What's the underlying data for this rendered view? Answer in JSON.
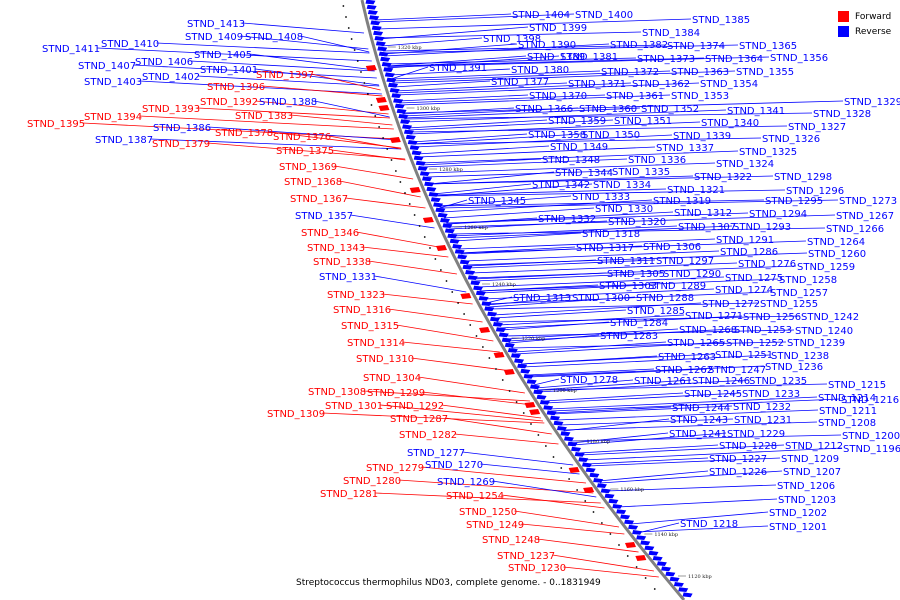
{
  "legend": {
    "forward_label": "Forward",
    "reverse_label": "Reverse",
    "forward_color": "#ff0000",
    "reverse_color": "#0000ff"
  },
  "caption": "Streptococcus thermophilus ND03, complete genome. - 0..1831949",
  "backbone_color": "#808080",
  "ticks": [
    "1320 kbp",
    "1300 kbp",
    "1280 kbp",
    "1260 kbp",
    "1240 kbp",
    "1220 kbp",
    "1200 kbp",
    "1180 kbp",
    "1160 kbp",
    "1140 kbp",
    "1120 kbp"
  ],
  "left_labels": [
    {
      "text": "STND_1413",
      "strand": "reverse"
    },
    {
      "text": "STND_1409",
      "strand": "reverse"
    },
    {
      "text": "STND_1408",
      "strand": "reverse"
    },
    {
      "text": "STND_1410",
      "strand": "reverse"
    },
    {
      "text": "STND_1411",
      "strand": "reverse"
    },
    {
      "text": "STND_1405",
      "strand": "reverse"
    },
    {
      "text": "STND_1406",
      "strand": "reverse"
    },
    {
      "text": "STND_1407",
      "strand": "reverse"
    },
    {
      "text": "STND_1401",
      "strand": "reverse"
    },
    {
      "text": "STND_1402",
      "strand": "reverse"
    },
    {
      "text": "STND_1403",
      "strand": "reverse"
    },
    {
      "text": "STND_1397",
      "strand": "forward"
    },
    {
      "text": "STND_1396",
      "strand": "forward"
    },
    {
      "text": "STND_1392",
      "strand": "forward"
    },
    {
      "text": "STND_1388",
      "strand": "reverse"
    },
    {
      "text": "STND_1393",
      "strand": "forward"
    },
    {
      "text": "STND_1394",
      "strand": "forward"
    },
    {
      "text": "STND_1395",
      "strand": "forward"
    },
    {
      "text": "STND_1383",
      "strand": "forward"
    },
    {
      "text": "STND_1386",
      "strand": "reverse"
    },
    {
      "text": "STND_1378",
      "strand": "forward"
    },
    {
      "text": "STND_1387",
      "strand": "reverse"
    },
    {
      "text": "STND_1376",
      "strand": "forward"
    },
    {
      "text": "STND_1379",
      "strand": "forward"
    },
    {
      "text": "STND_1375",
      "strand": "forward"
    },
    {
      "text": "STND_1369",
      "strand": "forward"
    },
    {
      "text": "STND_1368",
      "strand": "forward"
    },
    {
      "text": "STND_1367",
      "strand": "forward"
    },
    {
      "text": "STND_1357",
      "strand": "reverse"
    },
    {
      "text": "STND_1346",
      "strand": "forward"
    },
    {
      "text": "STND_1343",
      "strand": "forward"
    },
    {
      "text": "STND_1338",
      "strand": "forward"
    },
    {
      "text": "STND_1331",
      "strand": "reverse"
    },
    {
      "text": "STND_1323",
      "strand": "forward"
    },
    {
      "text": "STND_1316",
      "strand": "forward"
    },
    {
      "text": "STND_1315",
      "strand": "forward"
    },
    {
      "text": "STND_1314",
      "strand": "forward"
    },
    {
      "text": "STND_1310",
      "strand": "forward"
    },
    {
      "text": "STND_1304",
      "strand": "forward"
    },
    {
      "text": "STND_1308",
      "strand": "forward"
    },
    {
      "text": "STND_1299",
      "strand": "forward"
    },
    {
      "text": "STND_1301",
      "strand": "forward"
    },
    {
      "text": "STND_1309",
      "strand": "forward"
    },
    {
      "text": "STND_1292",
      "strand": "forward"
    },
    {
      "text": "STND_1287",
      "strand": "forward"
    },
    {
      "text": "STND_1282",
      "strand": "forward"
    },
    {
      "text": "STND_1277",
      "strand": "reverse"
    },
    {
      "text": "STND_1279",
      "strand": "forward"
    },
    {
      "text": "STND_1270",
      "strand": "reverse"
    },
    {
      "text": "STND_1280",
      "strand": "forward"
    },
    {
      "text": "STND_1269",
      "strand": "reverse"
    },
    {
      "text": "STND_1281",
      "strand": "forward"
    },
    {
      "text": "STND_1254",
      "strand": "forward"
    },
    {
      "text": "STND_1250",
      "strand": "forward"
    },
    {
      "text": "STND_1249",
      "strand": "forward"
    },
    {
      "text": "STND_1248",
      "strand": "forward"
    },
    {
      "text": "STND_1237",
      "strand": "forward"
    },
    {
      "text": "STND_1230",
      "strand": "forward"
    }
  ],
  "right_labels": [
    {
      "text": "STND_1404",
      "strand": "reverse"
    },
    {
      "text": "STND_1400",
      "strand": "reverse"
    },
    {
      "text": "STND_1385",
      "strand": "reverse"
    },
    {
      "text": "STND_1399",
      "strand": "reverse"
    },
    {
      "text": "STND_1384",
      "strand": "reverse"
    },
    {
      "text": "STND_1398",
      "strand": "reverse"
    },
    {
      "text": "STND_1390",
      "strand": "reverse"
    },
    {
      "text": "STND_1382",
      "strand": "reverse"
    },
    {
      "text": "STND_1374",
      "strand": "reverse"
    },
    {
      "text": "STND_1365",
      "strand": "reverse"
    },
    {
      "text": "STND_1389",
      "strand": "reverse"
    },
    {
      "text": "STND_1381",
      "strand": "reverse"
    },
    {
      "text": "STND_1373",
      "strand": "reverse"
    },
    {
      "text": "STND_1364",
      "strand": "reverse"
    },
    {
      "text": "STND_1356",
      "strand": "reverse"
    },
    {
      "text": "STND_1391",
      "strand": "reverse"
    },
    {
      "text": "STND_1380",
      "strand": "reverse"
    },
    {
      "text": "STND_1372",
      "strand": "reverse"
    },
    {
      "text": "STND_1363",
      "strand": "reverse"
    },
    {
      "text": "STND_1355",
      "strand": "reverse"
    },
    {
      "text": "STND_1377",
      "strand": "reverse"
    },
    {
      "text": "STND_1371",
      "strand": "reverse"
    },
    {
      "text": "STND_1362",
      "strand": "reverse"
    },
    {
      "text": "STND_1354",
      "strand": "reverse"
    },
    {
      "text": "STND_1370",
      "strand": "reverse"
    },
    {
      "text": "STND_1361",
      "strand": "reverse"
    },
    {
      "text": "STND_1353",
      "strand": "reverse"
    },
    {
      "text": "STND_1329",
      "strand": "reverse"
    },
    {
      "text": "STND_1366",
      "strand": "reverse"
    },
    {
      "text": "STND_1360",
      "strand": "reverse"
    },
    {
      "text": "STND_1352",
      "strand": "reverse"
    },
    {
      "text": "STND_1341",
      "strand": "reverse"
    },
    {
      "text": "STND_1328",
      "strand": "reverse"
    },
    {
      "text": "STND_1359",
      "strand": "reverse"
    },
    {
      "text": "STND_1351",
      "strand": "reverse"
    },
    {
      "text": "STND_1340",
      "strand": "reverse"
    },
    {
      "text": "STND_1327",
      "strand": "reverse"
    },
    {
      "text": "STND_1358",
      "strand": "reverse"
    },
    {
      "text": "STND_1350",
      "strand": "reverse"
    },
    {
      "text": "STND_1339",
      "strand": "reverse"
    },
    {
      "text": "STND_1326",
      "strand": "reverse"
    },
    {
      "text": "STND_1349",
      "strand": "reverse"
    },
    {
      "text": "STND_1337",
      "strand": "reverse"
    },
    {
      "text": "STND_1325",
      "strand": "reverse"
    },
    {
      "text": "STND_1348",
      "strand": "reverse"
    },
    {
      "text": "STND_1336",
      "strand": "reverse"
    },
    {
      "text": "STND_1324",
      "strand": "reverse"
    },
    {
      "text": "STND_1344",
      "strand": "reverse"
    },
    {
      "text": "STND_1335",
      "strand": "reverse"
    },
    {
      "text": "STND_1322",
      "strand": "reverse"
    },
    {
      "text": "STND_1342",
      "strand": "reverse"
    },
    {
      "text": "STND_1334",
      "strand": "reverse"
    },
    {
      "text": "STND_1321",
      "strand": "reverse"
    },
    {
      "text": "STND_1298",
      "strand": "reverse"
    },
    {
      "text": "STND_1333",
      "strand": "reverse"
    },
    {
      "text": "STND_1319",
      "strand": "reverse"
    },
    {
      "text": "STND_1296",
      "strand": "reverse"
    },
    {
      "text": "STND_1345",
      "strand": "reverse"
    },
    {
      "text": "STND_1330",
      "strand": "reverse"
    },
    {
      "text": "STND_1312",
      "strand": "reverse"
    },
    {
      "text": "STND_1295",
      "strand": "reverse"
    },
    {
      "text": "STND_1273",
      "strand": "reverse"
    },
    {
      "text": "STND_1294",
      "strand": "reverse"
    },
    {
      "text": "STND_1267",
      "strand": "reverse"
    },
    {
      "text": "STND_1332",
      "strand": "reverse"
    },
    {
      "text": "STND_1320",
      "strand": "reverse"
    },
    {
      "text": "STND_1307",
      "strand": "reverse"
    },
    {
      "text": "STND_1293",
      "strand": "reverse"
    },
    {
      "text": "STND_1266",
      "strand": "reverse"
    },
    {
      "text": "STND_1318",
      "strand": "reverse"
    },
    {
      "text": "STND_1291",
      "strand": "reverse"
    },
    {
      "text": "STND_1264",
      "strand": "reverse"
    },
    {
      "text": "STND_1317",
      "strand": "reverse"
    },
    {
      "text": "STND_1306",
      "strand": "reverse"
    },
    {
      "text": "STND_1286",
      "strand": "reverse"
    },
    {
      "text": "STND_1260",
      "strand": "reverse"
    },
    {
      "text": "STND_1311",
      "strand": "reverse"
    },
    {
      "text": "STND_1297",
      "strand": "reverse"
    },
    {
      "text": "STND_1276",
      "strand": "reverse"
    },
    {
      "text": "STND_1259",
      "strand": "reverse"
    },
    {
      "text": "STND_1305",
      "strand": "reverse"
    },
    {
      "text": "STND_1290",
      "strand": "reverse"
    },
    {
      "text": "STND_1275",
      "strand": "reverse"
    },
    {
      "text": "STND_1258",
      "strand": "reverse"
    },
    {
      "text": "STND_1303",
      "strand": "reverse"
    },
    {
      "text": "STND_1289",
      "strand": "reverse"
    },
    {
      "text": "STND_1274",
      "strand": "reverse"
    },
    {
      "text": "STND_1257",
      "strand": "reverse"
    },
    {
      "text": "STND_1313",
      "strand": "reverse"
    },
    {
      "text": "STND_1300",
      "strand": "reverse"
    },
    {
      "text": "STND_1288",
      "strand": "reverse"
    },
    {
      "text": "STND_1272",
      "strand": "reverse"
    },
    {
      "text": "STND_1255",
      "strand": "reverse"
    },
    {
      "text": "STND_1285",
      "strand": "reverse"
    },
    {
      "text": "STND_1271",
      "strand": "reverse"
    },
    {
      "text": "STND_1256",
      "strand": "reverse"
    },
    {
      "text": "STND_1242",
      "strand": "reverse"
    },
    {
      "text": "STND_1284",
      "strand": "reverse"
    },
    {
      "text": "STND_1268",
      "strand": "reverse"
    },
    {
      "text": "STND_1253",
      "strand": "reverse"
    },
    {
      "text": "STND_1240",
      "strand": "reverse"
    },
    {
      "text": "STND_1283",
      "strand": "reverse"
    },
    {
      "text": "STND_1265",
      "strand": "reverse"
    },
    {
      "text": "STND_1252",
      "strand": "reverse"
    },
    {
      "text": "STND_1239",
      "strand": "reverse"
    },
    {
      "text": "STND_1263",
      "strand": "reverse"
    },
    {
      "text": "STND_1251",
      "strand": "reverse"
    },
    {
      "text": "STND_1238",
      "strand": "reverse"
    },
    {
      "text": "STND_1262",
      "strand": "reverse"
    },
    {
      "text": "STND_1247",
      "strand": "reverse"
    },
    {
      "text": "STND_1236",
      "strand": "reverse"
    },
    {
      "text": "STND_1216",
      "strand": "reverse"
    },
    {
      "text": "STND_1278",
      "strand": "reverse"
    },
    {
      "text": "STND_1261",
      "strand": "reverse"
    },
    {
      "text": "STND_1246",
      "strand": "reverse"
    },
    {
      "text": "STND_1235",
      "strand": "reverse"
    },
    {
      "text": "STND_1215",
      "strand": "reverse"
    },
    {
      "text": "STND_1245",
      "strand": "reverse"
    },
    {
      "text": "STND_1233",
      "strand": "reverse"
    },
    {
      "text": "STND_1214",
      "strand": "reverse"
    },
    {
      "text": "STND_1244",
      "strand": "reverse"
    },
    {
      "text": "STND_1232",
      "strand": "reverse"
    },
    {
      "text": "STND_1211",
      "strand": "reverse"
    },
    {
      "text": "STND_1243",
      "strand": "reverse"
    },
    {
      "text": "STND_1231",
      "strand": "reverse"
    },
    {
      "text": "STND_1208",
      "strand": "reverse"
    },
    {
      "text": "STND_1241",
      "strand": "reverse"
    },
    {
      "text": "STND_1229",
      "strand": "reverse"
    },
    {
      "text": "STND_1200",
      "strand": "reverse"
    },
    {
      "text": "STND_1228",
      "strand": "reverse"
    },
    {
      "text": "STND_1212",
      "strand": "reverse"
    },
    {
      "text": "STND_1196",
      "strand": "reverse"
    },
    {
      "text": "STND_1227",
      "strand": "reverse"
    },
    {
      "text": "STND_1209",
      "strand": "reverse"
    },
    {
      "text": "STND_1226",
      "strand": "reverse"
    },
    {
      "text": "STND_1207",
      "strand": "reverse"
    },
    {
      "text": "STND_1206",
      "strand": "reverse"
    },
    {
      "text": "STND_1203",
      "strand": "reverse"
    },
    {
      "text": "STND_1218",
      "strand": "reverse"
    },
    {
      "text": "STND_1202",
      "strand": "reverse"
    },
    {
      "text": "STND_1201",
      "strand": "reverse"
    }
  ]
}
